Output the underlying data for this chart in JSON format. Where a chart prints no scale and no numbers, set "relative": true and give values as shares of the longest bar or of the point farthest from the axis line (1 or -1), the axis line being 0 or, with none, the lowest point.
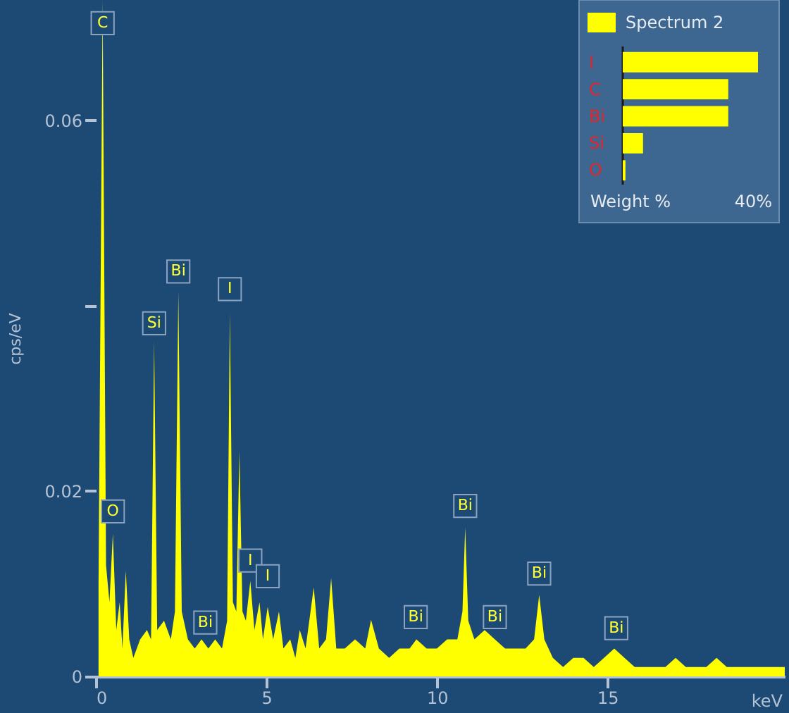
{
  "chart_data": [
    {
      "type": "area",
      "xlabel": "keV",
      "ylabel": "cps/eV",
      "xlim": [
        0,
        20.2
      ],
      "ylim": [
        0,
        0.073
      ],
      "xticks": [
        0,
        5,
        10,
        15
      ],
      "yticks": [
        0,
        0.02,
        {
          "value": 0.04,
          "label": null
        },
        0.06
      ],
      "grid": false,
      "series": [
        {
          "color": "#ffff00",
          "x": [
            0.08,
            0.2,
            0.3,
            0.4,
            0.5,
            0.6,
            0.7,
            0.78,
            0.88,
            0.98,
            1.1,
            1.3,
            1.5,
            1.62,
            1.71,
            1.8,
            2.0,
            2.2,
            2.32,
            2.42,
            2.52,
            2.7,
            2.9,
            3.1,
            3.3,
            3.5,
            3.7,
            3.85,
            3.93,
            4.02,
            4.12,
            4.21,
            4.3,
            4.4,
            4.53,
            4.65,
            4.8,
            4.9,
            5.04,
            5.2,
            5.37,
            5.5,
            5.7,
            5.85,
            5.98,
            6.15,
            6.39,
            6.55,
            6.75,
            6.9,
            7.05,
            7.3,
            7.6,
            7.9,
            8.07,
            8.3,
            8.6,
            8.9,
            9.2,
            9.4,
            9.7,
            10.0,
            10.3,
            10.6,
            10.75,
            10.83,
            10.92,
            11.1,
            11.4,
            11.7,
            12.0,
            12.3,
            12.6,
            12.85,
            13.0,
            13.15,
            13.4,
            13.7,
            14.0,
            14.3,
            14.6,
            14.9,
            15.2,
            15.5,
            15.8,
            16.1,
            16.4,
            16.7,
            17.0,
            17.3,
            17.6,
            17.9,
            18.2,
            18.5,
            18.8,
            19.1,
            19.4,
            19.7,
            20.0,
            20.2
          ],
          "values": [
            0.01,
            0.073,
            0.012,
            0.008,
            0.0154,
            0.005,
            0.008,
            0.003,
            0.0114,
            0.004,
            0.002,
            0.004,
            0.005,
            0.004,
            0.0362,
            0.005,
            0.006,
            0.004,
            0.007,
            0.0415,
            0.007,
            0.004,
            0.003,
            0.004,
            0.003,
            0.004,
            0.003,
            0.006,
            0.0392,
            0.008,
            0.007,
            0.0243,
            0.007,
            0.006,
            0.0103,
            0.005,
            0.008,
            0.004,
            0.0075,
            0.004,
            0.007,
            0.003,
            0.004,
            0.002,
            0.005,
            0.003,
            0.0096,
            0.003,
            0.004,
            0.0106,
            0.003,
            0.003,
            0.004,
            0.003,
            0.0061,
            0.003,
            0.002,
            0.003,
            0.003,
            0.004,
            0.003,
            0.003,
            0.004,
            0.004,
            0.007,
            0.0161,
            0.006,
            0.004,
            0.005,
            0.004,
            0.003,
            0.003,
            0.003,
            0.004,
            0.0088,
            0.004,
            0.002,
            0.001,
            0.002,
            0.002,
            0.001,
            0.002,
            0.003,
            0.002,
            0.001,
            0.001,
            0.001,
            0.001,
            0.002,
            0.001,
            0.001,
            0.001,
            0.002,
            0.001,
            0.001,
            0.001,
            0.001,
            0.001,
            0.001,
            0.001
          ]
        }
      ],
      "annotations": [
        {
          "text": "C",
          "x": 0.2,
          "y": 0.0705
        },
        {
          "text": "O",
          "x": 0.5,
          "y": 0.0178
        },
        {
          "text": "Si",
          "x": 1.71,
          "y": 0.0381
        },
        {
          "text": "Bi",
          "x": 2.42,
          "y": 0.0437
        },
        {
          "text": "I",
          "x": 3.93,
          "y": 0.0418
        },
        {
          "text": "Bi",
          "x": 3.21,
          "y": 0.0058
        },
        {
          "text": "I",
          "x": 4.53,
          "y": 0.0125
        },
        {
          "text": "I",
          "x": 5.04,
          "y": 0.0108
        },
        {
          "text": "Bi",
          "x": 9.38,
          "y": 0.0064
        },
        {
          "text": "Bi",
          "x": 10.83,
          "y": 0.0184
        },
        {
          "text": "Bi",
          "x": 11.7,
          "y": 0.0064
        },
        {
          "text": "Bi",
          "x": 13.0,
          "y": 0.0111
        },
        {
          "text": "Bi",
          "x": 15.26,
          "y": 0.0052
        }
      ]
    },
    {
      "type": "bar",
      "orientation": "horizontal",
      "categories": [
        "I",
        "C",
        "Bi",
        "Si",
        "O"
      ],
      "xlabel": "Weight %",
      "relative": true,
      "annotations": [
        "40%"
      ],
      "legend": "top",
      "series": [
        {
          "name": "Spectrum 2",
          "color": "#ffff00",
          "values": [
            1,
            0.78,
            0.78,
            0.15,
            0.02
          ]
        }
      ]
    }
  ]
}
